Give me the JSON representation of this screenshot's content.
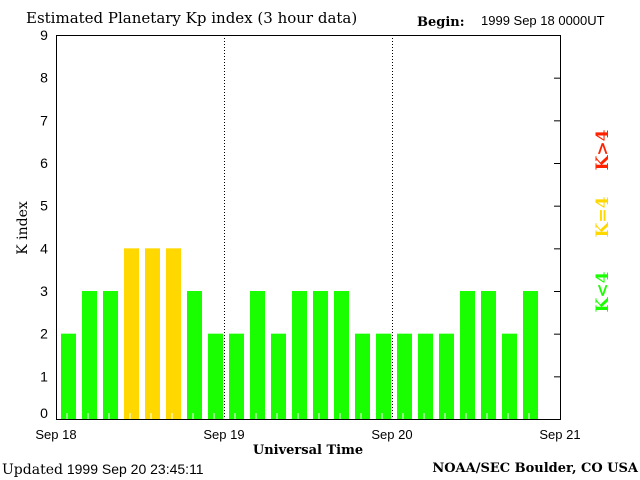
{
  "chart_data": {
    "type": "bar",
    "title": "Estimated Planetary Kp index (3 hour data)",
    "begin_label": "Begin:",
    "begin_value": "1999 Sep 18 0000UT",
    "xlabel": "Universal Time",
    "ylabel": "K index",
    "ylim": [
      0,
      9
    ],
    "yticks": [
      "0",
      "1",
      "2",
      "3",
      "4",
      "5",
      "6",
      "7",
      "8",
      "9"
    ],
    "xticks": [
      "Sep 18",
      "Sep 19",
      "Sep 20",
      "Sep 21"
    ],
    "slots_per_day": 8,
    "values": [
      2,
      3,
      3,
      4,
      4,
      4,
      3,
      2,
      2,
      3,
      2,
      3,
      3,
      3,
      2,
      2,
      2,
      2,
      2,
      3,
      3,
      2,
      3
    ],
    "legend": [
      {
        "label": "K<4",
        "color": "#1aff00"
      },
      {
        "label": "K=4",
        "color": "#ffd800"
      },
      {
        "label": "K>4",
        "color": "#ff2200"
      }
    ],
    "legend_placement": "right"
  },
  "footer": {
    "updated_label": "Updated",
    "updated_value": "1999 Sep 20 23:45:11",
    "credit": "NOAA/SEC Boulder, CO USA"
  }
}
